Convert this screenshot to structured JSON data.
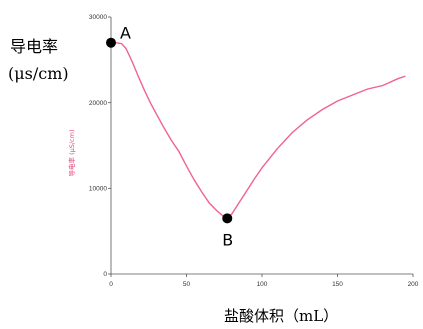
{
  "chart_data": {
    "type": "line",
    "title": "",
    "ylabel_outer": "导电率",
    "ylabel_outer_unit": "(μs/cm)",
    "ylabel_inner": "导电率 (μS/cm)",
    "xlabel": "盐酸体积（mL）",
    "xlim": [
      0,
      200
    ],
    "ylim": [
      0,
      30000
    ],
    "x_ticks": [
      0,
      50,
      100,
      150,
      200
    ],
    "y_ticks": [
      0,
      10000,
      20000,
      30000
    ],
    "grid": false,
    "line_color": "#f06292",
    "series": [
      {
        "x": [
          0,
          3,
          7,
          10,
          14,
          18,
          22,
          26,
          30,
          35,
          40,
          45,
          50,
          55,
          60,
          65,
          70,
          74,
          77,
          80,
          84,
          88,
          95,
          100,
          110,
          120,
          130,
          140,
          150,
          160,
          170,
          180,
          190,
          195
        ],
        "values": [
          27000,
          27000,
          26900,
          26300,
          24800,
          23100,
          21500,
          20000,
          18700,
          17100,
          15600,
          14300,
          12600,
          11000,
          9600,
          8300,
          7400,
          6800,
          6500,
          7000,
          8100,
          9200,
          11100,
          12400,
          14600,
          16500,
          18000,
          19200,
          20200,
          20900,
          21600,
          22000,
          22800,
          23100
        ]
      }
    ],
    "points": [
      {
        "label": "A",
        "x": 0,
        "y": 27000
      },
      {
        "label": "B",
        "x": 77,
        "y": 6500
      }
    ]
  }
}
